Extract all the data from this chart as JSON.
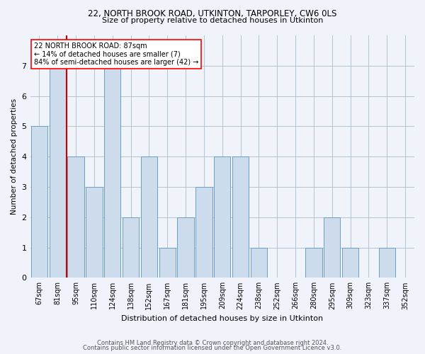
{
  "title1": "22, NORTH BROOK ROAD, UTKINTON, TARPORLEY, CW6 0LS",
  "title2": "Size of property relative to detached houses in Utkinton",
  "xlabel": "Distribution of detached houses by size in Utkinton",
  "ylabel": "Number of detached properties",
  "categories": [
    "67sqm",
    "81sqm",
    "95sqm",
    "110sqm",
    "124sqm",
    "138sqm",
    "152sqm",
    "167sqm",
    "181sqm",
    "195sqm",
    "209sqm",
    "224sqm",
    "238sqm",
    "252sqm",
    "266sqm",
    "280sqm",
    "295sqm",
    "309sqm",
    "323sqm",
    "337sqm",
    "352sqm"
  ],
  "values": [
    5,
    7,
    4,
    3,
    7,
    2,
    4,
    1,
    2,
    3,
    4,
    4,
    1,
    0,
    0,
    1,
    2,
    1,
    0,
    1,
    0
  ],
  "bar_color": "#ccdcec",
  "bar_edge_color": "#6a9ec0",
  "annotation_line1": "22 NORTH BROOK ROAD: 87sqm",
  "annotation_line2": "← 14% of detached houses are smaller (7)",
  "annotation_line3": "84% of semi-detached houses are larger (42) →",
  "marker_color": "#cc0000",
  "ylim": [
    0,
    8
  ],
  "yticks": [
    0,
    1,
    2,
    3,
    4,
    5,
    6,
    7
  ],
  "footer1": "Contains HM Land Registry data © Crown copyright and database right 2024.",
  "footer2": "Contains public sector information licensed under the Open Government Licence v3.0.",
  "background_color": "#f0f4fa",
  "grid_color": "#aabccc"
}
